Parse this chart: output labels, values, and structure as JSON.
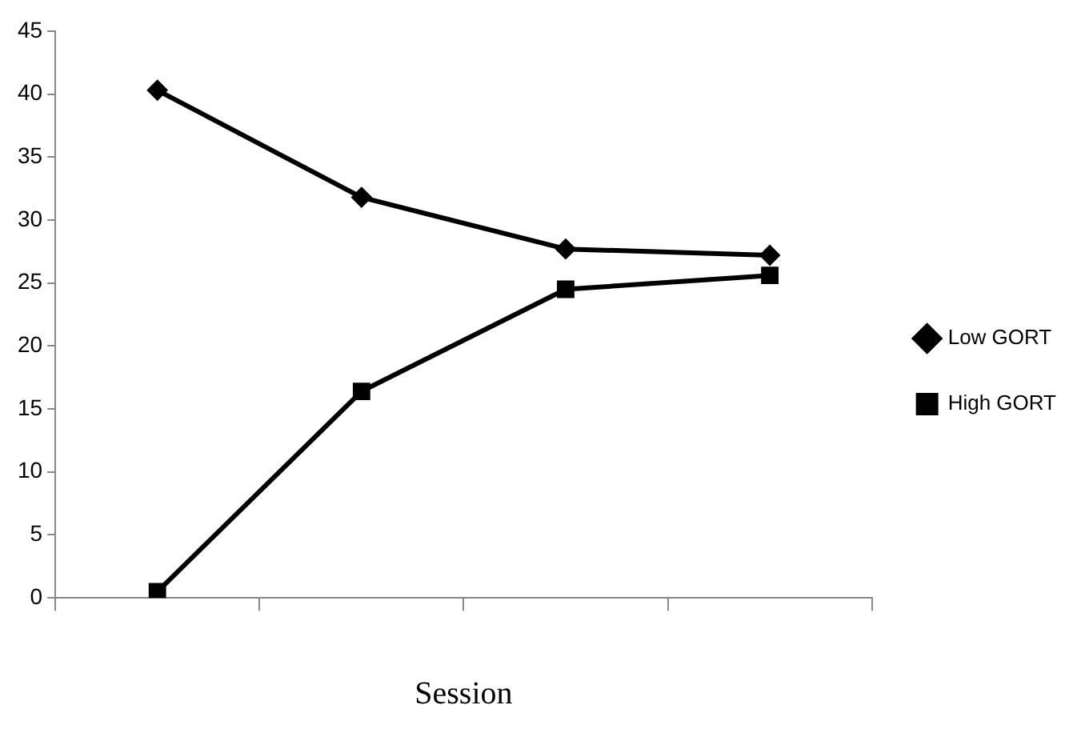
{
  "chart_data": {
    "type": "line",
    "xlabel": "Session",
    "categories": [
      null,
      null,
      null,
      null
    ],
    "series": [
      {
        "name": "Low GORT",
        "color": "#000000",
        "marker": "diamond",
        "values": [
          40.3,
          31.8,
          27.7,
          27.2
        ]
      },
      {
        "name": "High GORT",
        "color": "#000000",
        "marker": "square",
        "values": [
          0.5,
          16.4,
          24.5,
          25.6
        ]
      }
    ],
    "ylim": [
      0,
      45
    ],
    "yticks": [
      0,
      5,
      10,
      15,
      20,
      25,
      30,
      35,
      40,
      45
    ],
    "grid": false,
    "legend": "right",
    "line_style": "solid"
  }
}
